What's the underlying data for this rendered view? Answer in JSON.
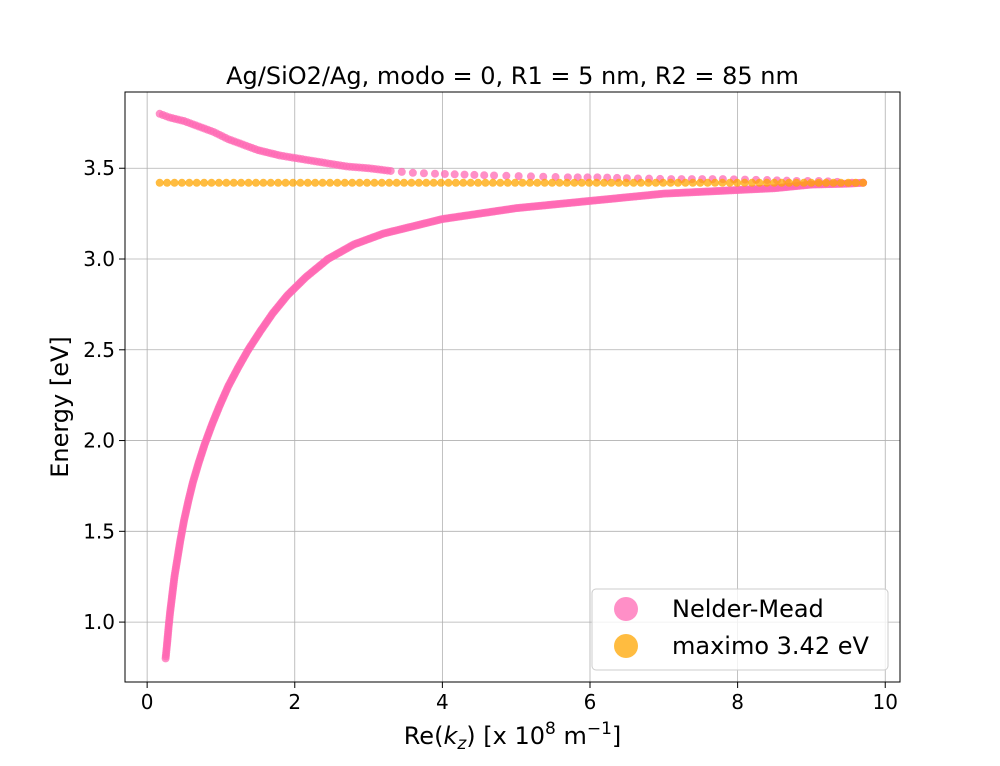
{
  "chart_data": {
    "type": "scatter",
    "title": "Ag/SiO2/Ag, modo = 0, R1 = 5 nm, R2 = 85 nm",
    "xlabel": {
      "prefix": "Re(",
      "var": "k",
      "sub": "z",
      "mid": ") [x 10",
      "sup1": "8",
      "unit": " m",
      "sup2": "−1",
      "suffix": "]"
    },
    "ylabel": "Energy [eV]",
    "xlim": [
      -0.3,
      10.2
    ],
    "ylim": [
      0.67,
      3.92
    ],
    "xticks": [
      0,
      2,
      4,
      6,
      8,
      10
    ],
    "xtick_labels": [
      "0",
      "2",
      "4",
      "6",
      "8",
      "10"
    ],
    "yticks": [
      1.0,
      1.5,
      2.0,
      2.5,
      3.0,
      3.5
    ],
    "ytick_labels": [
      "1.0",
      "1.5",
      "2.0",
      "2.5",
      "3.0",
      "3.5"
    ],
    "grid": true,
    "legend_position": "lower-right",
    "series": [
      {
        "name": "Nelder-Mead",
        "color": "#ff69b4",
        "branches": [
          {
            "label": "lower",
            "points": [
              [
                0.25,
                0.8
              ],
              [
                0.27,
                0.88
              ],
              [
                0.29,
                0.97
              ],
              [
                0.31,
                1.05
              ],
              [
                0.34,
                1.15
              ],
              [
                0.37,
                1.25
              ],
              [
                0.41,
                1.35
              ],
              [
                0.45,
                1.45
              ],
              [
                0.5,
                1.56
              ],
              [
                0.56,
                1.67
              ],
              [
                0.62,
                1.77
              ],
              [
                0.7,
                1.88
              ],
              [
                0.78,
                1.98
              ],
              [
                0.88,
                2.09
              ],
              [
                0.98,
                2.19
              ],
              [
                1.1,
                2.3
              ],
              [
                1.23,
                2.4
              ],
              [
                1.37,
                2.5
              ],
              [
                1.53,
                2.6
              ],
              [
                1.7,
                2.7
              ],
              [
                1.9,
                2.8
              ],
              [
                2.15,
                2.9
              ],
              [
                2.45,
                3.0
              ],
              [
                2.8,
                3.08
              ],
              [
                3.2,
                3.14
              ],
              [
                3.6,
                3.18
              ],
              [
                4.0,
                3.22
              ],
              [
                4.5,
                3.25
              ],
              [
                5.0,
                3.28
              ],
              [
                5.5,
                3.3
              ],
              [
                6.0,
                3.32
              ],
              [
                6.5,
                3.34
              ],
              [
                7.0,
                3.36
              ],
              [
                7.5,
                3.37
              ],
              [
                8.0,
                3.38
              ],
              [
                8.5,
                3.39
              ],
              [
                9.0,
                3.41
              ],
              [
                9.5,
                3.415
              ],
              [
                9.7,
                3.42
              ]
            ]
          },
          {
            "label": "upper",
            "points": [
              [
                0.17,
                3.8
              ],
              [
                0.3,
                3.78
              ],
              [
                0.5,
                3.76
              ],
              [
                0.7,
                3.73
              ],
              [
                0.9,
                3.7
              ],
              [
                1.1,
                3.66
              ],
              [
                1.3,
                3.63
              ],
              [
                1.5,
                3.6
              ],
              [
                1.8,
                3.57
              ],
              [
                2.1,
                3.55
              ],
              [
                2.4,
                3.53
              ],
              [
                2.7,
                3.51
              ],
              [
                3.0,
                3.5
              ],
              [
                3.3,
                3.485
              ],
              [
                3.6,
                3.475
              ],
              [
                3.9,
                3.47
              ],
              [
                4.3,
                3.465
              ],
              [
                4.7,
                3.46
              ],
              [
                5.2,
                3.455
              ],
              [
                5.7,
                3.45
              ],
              [
                6.1,
                3.45
              ],
              [
                6.5,
                3.445
              ],
              [
                7.1,
                3.44
              ],
              [
                7.8,
                3.44
              ],
              [
                8.4,
                3.435
              ],
              [
                8.8,
                3.43
              ],
              [
                9.1,
                3.43
              ],
              [
                9.35,
                3.425
              ],
              [
                9.55,
                3.42
              ],
              [
                9.7,
                3.42
              ]
            ]
          }
        ]
      },
      {
        "name": "maximo 3.42 eV",
        "color": "#ffa500",
        "y_constant": 3.42,
        "x_start": 0.17,
        "x_end": 9.7
      }
    ]
  }
}
